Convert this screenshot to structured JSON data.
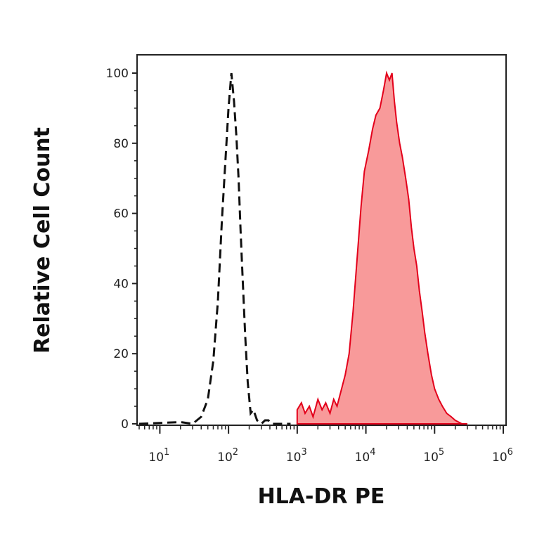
{
  "chart_data": {
    "type": "area",
    "xlabel": "HLA-DR PE",
    "ylabel": "Relative Cell Count",
    "x_scale": "log",
    "xlim": [
      5,
      1000000
    ],
    "ylim": [
      0,
      105
    ],
    "y_ticks": [
      0,
      20,
      40,
      60,
      80,
      100
    ],
    "y_tick_labels": [
      "0",
      "20",
      "40",
      "60",
      "80",
      "100"
    ],
    "x_ticks": [
      10,
      100,
      1000,
      10000,
      100000,
      1000000
    ],
    "x_tick_labels": [
      {
        "base": "10",
        "exp": "1"
      },
      {
        "base": "10",
        "exp": "2"
      },
      {
        "base": "10",
        "exp": "3"
      },
      {
        "base": "10",
        "exp": "4"
      },
      {
        "base": "10",
        "exp": "5"
      },
      {
        "base": "10",
        "exp": "6"
      }
    ],
    "grid": false,
    "series": [
      {
        "style": "dashed-line",
        "color": "#111111",
        "x": [
          5,
          20,
          30,
          40,
          50,
          60,
          70,
          80,
          90,
          100,
          110,
          120,
          130,
          140,
          150,
          160,
          175,
          190,
          210,
          230,
          260,
          300,
          340,
          380,
          420,
          500,
          600,
          800
        ],
        "y": [
          0,
          0.5,
          0,
          2,
          7,
          18,
          35,
          58,
          75,
          90,
          100,
          92,
          82,
          70,
          55,
          42,
          25,
          12,
          3,
          4,
          1,
          0,
          1,
          1,
          0,
          0,
          0,
          0
        ]
      },
      {
        "style": "filled",
        "color": "#e3001b",
        "fill": "#f89a9a",
        "x": [
          1000,
          1150,
          1300,
          1500,
          1700,
          2000,
          2300,
          2600,
          3000,
          3400,
          3800,
          4300,
          5000,
          5700,
          6500,
          7500,
          8500,
          9500,
          11000,
          12500,
          14000,
          16000,
          18000,
          20000,
          22000,
          24000,
          26000,
          28000,
          31000,
          34000,
          38000,
          42000,
          46000,
          50000,
          55000,
          60000,
          66000,
          72000,
          80000,
          90000,
          100000,
          115000,
          130000,
          150000,
          175000,
          200000,
          250000,
          300000
        ],
        "y": [
          4,
          6,
          3,
          5,
          2,
          7,
          4,
          6,
          3,
          7,
          5,
          9,
          14,
          20,
          32,
          48,
          62,
          72,
          78,
          84,
          88,
          90,
          95,
          100,
          98,
          100,
          92,
          86,
          80,
          76,
          70,
          64,
          56,
          50,
          45,
          38,
          32,
          26,
          20,
          14,
          10,
          7,
          5,
          3,
          2,
          1,
          0,
          0
        ]
      }
    ]
  }
}
